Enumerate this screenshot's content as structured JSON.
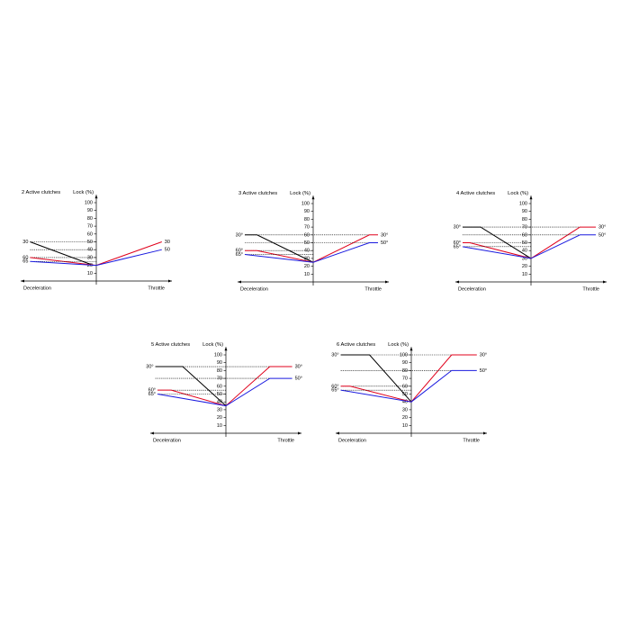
{
  "chart_data": [
    {
      "type": "line",
      "title": "2 Active clutches",
      "y_label": "Lock (%)",
      "x_label_left": "Deceleration",
      "x_label_right": "Throttle",
      "xlim": [
        -105,
        105
      ],
      "ylim": [
        0,
        110
      ],
      "yticks": [
        10,
        20,
        30,
        40,
        50,
        60,
        70,
        80,
        90,
        100
      ],
      "series": [
        {
          "color": "#000000",
          "x": [
            -92,
            -4
          ],
          "values": [
            50,
            20
          ],
          "left_label": "30"
        },
        {
          "color": "#e0001b",
          "x": [
            -92,
            0,
            91
          ],
          "values": [
            30,
            20,
            50
          ],
          "left_label": "60",
          "right_label": "30"
        },
        {
          "color": "#1a1adf",
          "x": [
            -92,
            0,
            91
          ],
          "values": [
            25,
            20,
            40
          ],
          "left_label": "65",
          "right_label": "50"
        }
      ]
    },
    {
      "type": "line",
      "title": "3 Active clutches",
      "y_label": "Lock (%)",
      "x_label_left": "Deceleration",
      "x_label_right": "Throttle",
      "xlim": [
        -105,
        105
      ],
      "ylim": [
        0,
        110
      ],
      "yticks": [
        10,
        20,
        30,
        40,
        50,
        60,
        70,
        80,
        90,
        100
      ],
      "series": [
        {
          "color": "#000000",
          "x": [
            -95,
            -78,
            0
          ],
          "values": [
            60,
            60,
            25
          ],
          "left_label": "30°"
        },
        {
          "color": "#e0001b",
          "x": [
            -95,
            -78,
            0,
            78,
            90
          ],
          "values": [
            40,
            40,
            25,
            60,
            60
          ],
          "left_label": "60°",
          "right_label": "30°"
        },
        {
          "color": "#1a1adf",
          "x": [
            -95,
            0,
            78,
            90
          ],
          "values": [
            35,
            25,
            50,
            50
          ],
          "left_label": "65°",
          "right_label": "50°"
        }
      ]
    },
    {
      "type": "line",
      "title": "4 Active clutches",
      "y_label": "Lock (%)",
      "x_label_left": "Deceleration",
      "x_label_right": "Throttle",
      "xlim": [
        -105,
        105
      ],
      "ylim": [
        0,
        110
      ],
      "yticks": [
        10,
        20,
        30,
        40,
        50,
        60,
        70,
        80,
        90,
        100
      ],
      "series": [
        {
          "color": "#000000",
          "x": [
            -95,
            -70,
            0
          ],
          "values": [
            70,
            70,
            30
          ],
          "left_label": "30°"
        },
        {
          "color": "#e0001b",
          "x": [
            -95,
            -85,
            0,
            68,
            90
          ],
          "values": [
            50,
            50,
            30,
            70,
            70
          ],
          "left_label": "60°",
          "right_label": "30°"
        },
        {
          "color": "#1a1adf",
          "x": [
            -95,
            0,
            68,
            90
          ],
          "values": [
            45,
            30,
            60,
            60
          ],
          "left_label": "65°",
          "right_label": "50°"
        }
      ]
    },
    {
      "type": "line",
      "title": "5 Active clutches",
      "y_label": "Lock (%)",
      "x_label_left": "Deceleration",
      "x_label_right": "Throttle",
      "xlim": [
        -105,
        105
      ],
      "ylim": [
        0,
        110
      ],
      "yticks": [
        10,
        20,
        30,
        40,
        50,
        60,
        70,
        80,
        90,
        100
      ],
      "series": [
        {
          "color": "#000000",
          "x": [
            -98,
            -60,
            0
          ],
          "values": [
            85,
            85,
            35
          ],
          "left_label": "30°"
        },
        {
          "color": "#e0001b",
          "x": [
            -95,
            -76,
            0,
            61,
            92
          ],
          "values": [
            55,
            55,
            35,
            85,
            85
          ],
          "left_label": "60°",
          "right_label": "30°"
        },
        {
          "color": "#1a1adf",
          "x": [
            -95,
            0,
            61,
            92
          ],
          "values": [
            50,
            35,
            70,
            70
          ],
          "left_label": "65°",
          "right_label": "50°"
        }
      ]
    },
    {
      "type": "line",
      "title": "6 Active clutches",
      "y_label": "Lock (%)",
      "x_label_left": "Deceleration",
      "x_label_right": "Throttle",
      "xlim": [
        -105,
        105
      ],
      "ylim": [
        0,
        110
      ],
      "yticks": [
        10,
        20,
        30,
        40,
        50,
        60,
        70,
        80,
        90,
        100
      ],
      "series": [
        {
          "color": "#000000",
          "x": [
            -98,
            -58,
            0
          ],
          "values": [
            100,
            100,
            40
          ],
          "left_label": "30°"
        },
        {
          "color": "#e0001b",
          "x": [
            -98,
            -85,
            0,
            56,
            91
          ],
          "values": [
            60,
            60,
            40,
            100,
            100
          ],
          "left_label": "60°",
          "right_label": "30°"
        },
        {
          "color": "#1a1adf",
          "x": [
            -98,
            0,
            56,
            91
          ],
          "values": [
            55,
            40,
            80,
            80
          ],
          "left_label": "65°",
          "right_label": "50°"
        }
      ]
    }
  ]
}
